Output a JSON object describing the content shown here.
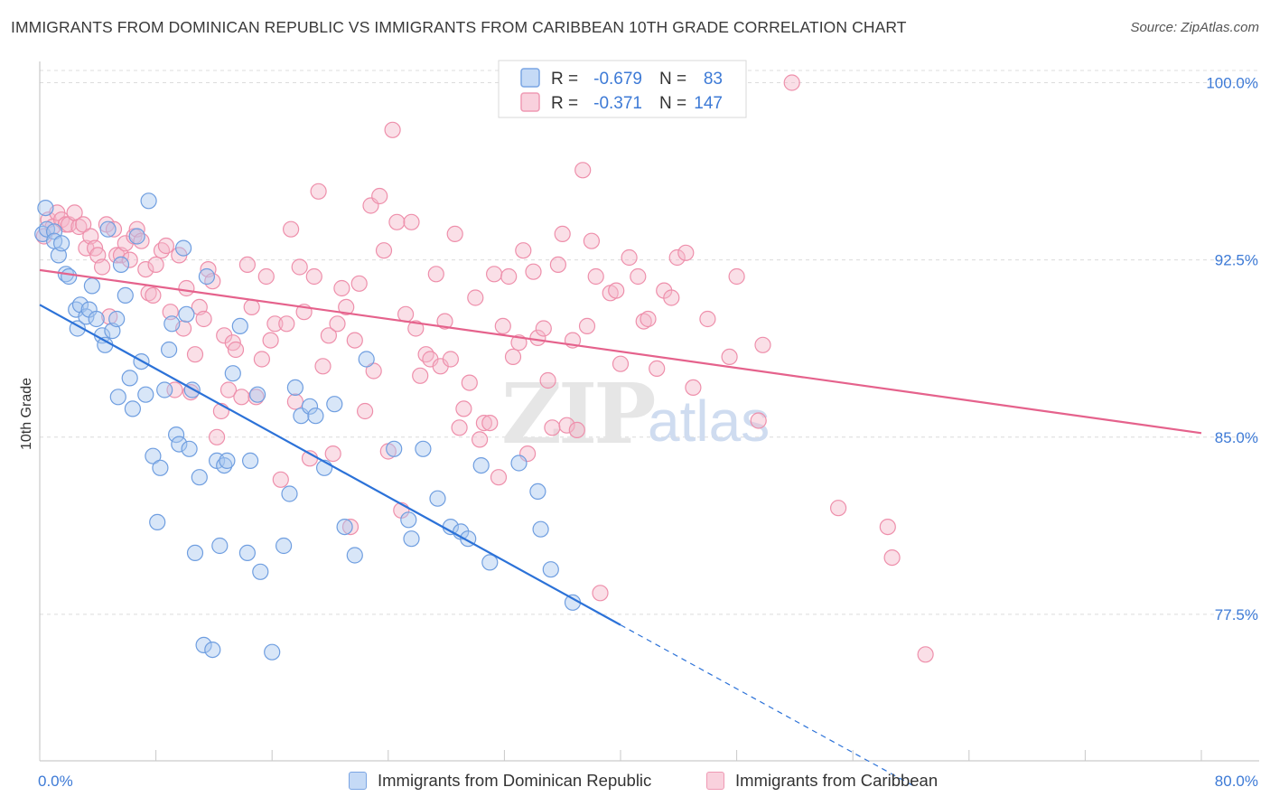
{
  "title": "IMMIGRANTS FROM DOMINICAN REPUBLIC VS IMMIGRANTS FROM CARIBBEAN 10TH GRADE CORRELATION CHART",
  "source": "Source: ZipAtlas.com",
  "watermark": {
    "zip": "ZIP",
    "atlas": "atlas"
  },
  "colors": {
    "blue_fill": "#a9c8f0",
    "blue_stroke": "#6f9ee0",
    "blue_line": "#2c72d8",
    "pink_fill": "#f5b9ca",
    "pink_stroke": "#ee8fab",
    "pink_line": "#e5628c",
    "axis_label_blue": "#3d7ad6",
    "grid": "#dcdcdc"
  },
  "legend_stats": [
    {
      "r_label": "R =",
      "r_value": "-0.679",
      "n_label": "N =",
      "n_value": "83"
    },
    {
      "r_label": "R =",
      "r_value": "-0.371",
      "n_label": "N =",
      "n_value": "147"
    }
  ],
  "chart_data": {
    "type": "scatter",
    "title": "IMMIGRANTS FROM DOMINICAN REPUBLIC VS IMMIGRANTS FROM CARIBBEAN 10TH GRADE CORRELATION CHART",
    "xlabel": "",
    "ylabel": "10th Grade",
    "xlim": [
      0,
      80
    ],
    "ylim": [
      71.3,
      100.9
    ],
    "x_tick_labels": [
      "0.0%",
      "80.0%"
    ],
    "y_ticks": [
      77.5,
      85.0,
      92.5,
      100.0
    ],
    "y_tick_labels": [
      "77.5%",
      "85.0%",
      "92.5%",
      "100.0%"
    ],
    "grid": true,
    "legend_position": "bottom",
    "series": [
      {
        "name": "Immigrants from Dominican Republic",
        "color": "#6f9ee0",
        "r": -0.679,
        "n": 83,
        "trend": {
          "x": [
            0,
            40
          ],
          "y": [
            90.6,
            77.05
          ],
          "dashed_to": {
            "x": 60.3,
            "y": 70.2
          }
        },
        "points": [
          [
            0.2,
            93.6
          ],
          [
            0.4,
            94.7
          ],
          [
            0.5,
            93.8
          ],
          [
            1.0,
            93.7
          ],
          [
            1.0,
            93.3
          ],
          [
            1.3,
            92.7
          ],
          [
            1.5,
            93.2
          ],
          [
            1.8,
            91.9
          ],
          [
            2.0,
            91.8
          ],
          [
            2.5,
            90.4
          ],
          [
            2.6,
            89.6
          ],
          [
            2.8,
            90.6
          ],
          [
            3.2,
            90.1
          ],
          [
            3.4,
            90.4
          ],
          [
            3.6,
            91.4
          ],
          [
            3.9,
            90.0
          ],
          [
            4.3,
            89.3
          ],
          [
            4.5,
            88.9
          ],
          [
            4.7,
            93.8
          ],
          [
            5.0,
            89.5
          ],
          [
            5.3,
            90.0
          ],
          [
            5.4,
            86.7
          ],
          [
            5.6,
            92.3
          ],
          [
            5.9,
            91.0
          ],
          [
            6.2,
            87.5
          ],
          [
            6.4,
            86.2
          ],
          [
            6.7,
            93.5
          ],
          [
            7.0,
            88.2
          ],
          [
            7.3,
            86.8
          ],
          [
            7.5,
            95.0
          ],
          [
            7.8,
            84.2
          ],
          [
            8.1,
            81.4
          ],
          [
            8.3,
            83.7
          ],
          [
            8.6,
            87.0
          ],
          [
            8.9,
            88.7
          ],
          [
            9.1,
            89.8
          ],
          [
            9.4,
            85.1
          ],
          [
            9.6,
            84.7
          ],
          [
            9.9,
            93.0
          ],
          [
            10.1,
            90.2
          ],
          [
            10.3,
            84.5
          ],
          [
            10.5,
            87.0
          ],
          [
            10.7,
            80.1
          ],
          [
            11.0,
            83.3
          ],
          [
            11.3,
            76.2
          ],
          [
            11.5,
            91.8
          ],
          [
            11.9,
            76.0
          ],
          [
            12.2,
            84.0
          ],
          [
            12.4,
            80.4
          ],
          [
            12.7,
            83.8
          ],
          [
            12.9,
            84.0
          ],
          [
            13.3,
            87.7
          ],
          [
            13.8,
            89.7
          ],
          [
            14.3,
            80.1
          ],
          [
            14.5,
            84.0
          ],
          [
            15.0,
            86.8
          ],
          [
            15.2,
            79.3
          ],
          [
            16.0,
            75.9
          ],
          [
            16.8,
            80.4
          ],
          [
            17.2,
            82.6
          ],
          [
            17.6,
            87.1
          ],
          [
            18.0,
            85.9
          ],
          [
            18.6,
            86.3
          ],
          [
            19.0,
            85.9
          ],
          [
            19.6,
            83.7
          ],
          [
            20.3,
            86.4
          ],
          [
            21.0,
            81.2
          ],
          [
            21.7,
            80.0
          ],
          [
            22.5,
            88.3
          ],
          [
            24.4,
            84.5
          ],
          [
            25.4,
            81.5
          ],
          [
            25.6,
            80.7
          ],
          [
            26.4,
            84.5
          ],
          [
            27.4,
            82.4
          ],
          [
            28.3,
            81.2
          ],
          [
            29.0,
            81.0
          ],
          [
            29.5,
            80.7
          ],
          [
            30.4,
            83.8
          ],
          [
            31.0,
            79.7
          ],
          [
            33.0,
            83.9
          ],
          [
            34.3,
            82.7
          ],
          [
            34.5,
            81.1
          ],
          [
            35.2,
            79.4
          ],
          [
            36.7,
            78.0
          ]
        ]
      },
      {
        "name": "Immigrants from Caribbean",
        "color": "#ee8fab",
        "r": -0.371,
        "n": 147,
        "trend": {
          "x": [
            0,
            80
          ],
          "y": [
            92.07,
            85.17
          ]
        },
        "points": [
          [
            0.3,
            93.5
          ],
          [
            0.6,
            94.2
          ],
          [
            0.9,
            93.9
          ],
          [
            1.2,
            94.5
          ],
          [
            1.5,
            94.2
          ],
          [
            1.8,
            94.0
          ],
          [
            2.0,
            94.0
          ],
          [
            2.4,
            94.5
          ],
          [
            2.7,
            93.9
          ],
          [
            3.0,
            94.0
          ],
          [
            3.2,
            93.0
          ],
          [
            3.5,
            93.5
          ],
          [
            3.8,
            93.0
          ],
          [
            4.0,
            92.7
          ],
          [
            4.3,
            92.2
          ],
          [
            4.6,
            94.0
          ],
          [
            4.8,
            90.1
          ],
          [
            5.1,
            93.8
          ],
          [
            5.3,
            92.7
          ],
          [
            5.6,
            92.7
          ],
          [
            5.9,
            93.2
          ],
          [
            6.2,
            92.5
          ],
          [
            6.5,
            93.5
          ],
          [
            6.7,
            93.8
          ],
          [
            7.0,
            93.3
          ],
          [
            7.3,
            92.1
          ],
          [
            7.5,
            91.1
          ],
          [
            7.8,
            91.0
          ],
          [
            8.0,
            92.3
          ],
          [
            8.4,
            92.9
          ],
          [
            8.7,
            93.1
          ],
          [
            9.0,
            90.3
          ],
          [
            9.3,
            87.0
          ],
          [
            9.6,
            92.7
          ],
          [
            9.9,
            89.6
          ],
          [
            10.1,
            91.3
          ],
          [
            10.4,
            86.9
          ],
          [
            10.7,
            88.5
          ],
          [
            11.0,
            90.5
          ],
          [
            11.3,
            90.0
          ],
          [
            11.6,
            92.1
          ],
          [
            11.9,
            91.6
          ],
          [
            12.2,
            85.0
          ],
          [
            12.5,
            86.1
          ],
          [
            12.7,
            89.3
          ],
          [
            13.0,
            87.0
          ],
          [
            13.3,
            89.0
          ],
          [
            13.5,
            88.7
          ],
          [
            13.9,
            86.7
          ],
          [
            14.3,
            92.3
          ],
          [
            14.6,
            90.5
          ],
          [
            14.9,
            86.7
          ],
          [
            15.3,
            88.3
          ],
          [
            15.6,
            91.8
          ],
          [
            15.9,
            89.1
          ],
          [
            16.2,
            89.8
          ],
          [
            16.6,
            83.2
          ],
          [
            17.0,
            89.8
          ],
          [
            17.3,
            93.8
          ],
          [
            17.6,
            86.5
          ],
          [
            17.9,
            92.2
          ],
          [
            18.2,
            90.3
          ],
          [
            18.6,
            84.1
          ],
          [
            18.9,
            91.8
          ],
          [
            19.2,
            95.4
          ],
          [
            19.5,
            88.0
          ],
          [
            19.9,
            89.3
          ],
          [
            20.2,
            84.3
          ],
          [
            20.5,
            89.8
          ],
          [
            20.8,
            91.3
          ],
          [
            21.1,
            90.5
          ],
          [
            21.4,
            81.2
          ],
          [
            21.7,
            89.1
          ],
          [
            22.0,
            91.5
          ],
          [
            22.4,
            86.1
          ],
          [
            22.8,
            94.8
          ],
          [
            23.0,
            87.8
          ],
          [
            23.4,
            95.2
          ],
          [
            23.7,
            92.9
          ],
          [
            24.0,
            84.4
          ],
          [
            24.3,
            98.0
          ],
          [
            24.6,
            94.1
          ],
          [
            24.9,
            81.9
          ],
          [
            25.2,
            90.2
          ],
          [
            25.6,
            94.1
          ],
          [
            25.9,
            89.6
          ],
          [
            26.2,
            87.6
          ],
          [
            26.6,
            88.5
          ],
          [
            26.9,
            88.3
          ],
          [
            27.3,
            91.9
          ],
          [
            27.6,
            88.0
          ],
          [
            27.9,
            89.9
          ],
          [
            28.3,
            88.3
          ],
          [
            28.6,
            93.6
          ],
          [
            28.9,
            85.4
          ],
          [
            29.2,
            86.2
          ],
          [
            29.6,
            87.3
          ],
          [
            30.0,
            90.9
          ],
          [
            30.3,
            84.9
          ],
          [
            30.6,
            85.6
          ],
          [
            31.0,
            85.6
          ],
          [
            31.3,
            91.9
          ],
          [
            31.6,
            83.3
          ],
          [
            31.9,
            89.7
          ],
          [
            32.3,
            91.8
          ],
          [
            32.6,
            88.4
          ],
          [
            33.0,
            89.0
          ],
          [
            33.3,
            92.9
          ],
          [
            33.6,
            84.3
          ],
          [
            34.0,
            92.0
          ],
          [
            34.3,
            89.2
          ],
          [
            34.7,
            89.6
          ],
          [
            35.0,
            87.4
          ],
          [
            35.3,
            85.4
          ],
          [
            35.7,
            92.3
          ],
          [
            36.0,
            93.6
          ],
          [
            36.3,
            85.5
          ],
          [
            36.7,
            89.1
          ],
          [
            37.0,
            85.3
          ],
          [
            37.4,
            96.3
          ],
          [
            37.7,
            89.7
          ],
          [
            38.0,
            93.3
          ],
          [
            38.3,
            91.8
          ],
          [
            38.6,
            78.4
          ],
          [
            39.3,
            91.1
          ],
          [
            39.7,
            91.2
          ],
          [
            40.0,
            88.1
          ],
          [
            40.6,
            92.6
          ],
          [
            41.2,
            91.8
          ],
          [
            41.6,
            89.9
          ],
          [
            41.9,
            90.0
          ],
          [
            42.5,
            87.9
          ],
          [
            43.0,
            91.2
          ],
          [
            43.5,
            90.9
          ],
          [
            43.9,
            92.6
          ],
          [
            44.5,
            92.8
          ],
          [
            45.0,
            87.1
          ],
          [
            46.0,
            90.0
          ],
          [
            47.5,
            88.4
          ],
          [
            48.0,
            91.8
          ],
          [
            49.5,
            85.7
          ],
          [
            49.8,
            88.9
          ],
          [
            51.8,
            100.0
          ],
          [
            55.0,
            82.0
          ],
          [
            58.4,
            81.2
          ],
          [
            58.7,
            79.9
          ],
          [
            61.0,
            75.8
          ]
        ]
      }
    ]
  }
}
